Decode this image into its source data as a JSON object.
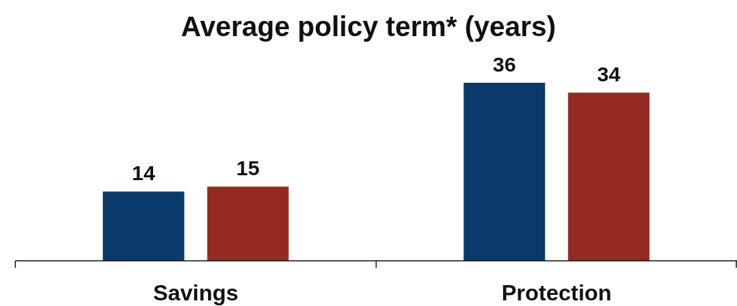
{
  "chart_data": {
    "type": "bar",
    "title": "Average policy term* (years)",
    "categories": [
      "Savings",
      "Protection"
    ],
    "series": [
      {
        "color": "#0a3a6b",
        "values": [
          14,
          36
        ]
      },
      {
        "color": "#952a22",
        "values": [
          15,
          34
        ]
      }
    ],
    "data_labels": true
  }
}
